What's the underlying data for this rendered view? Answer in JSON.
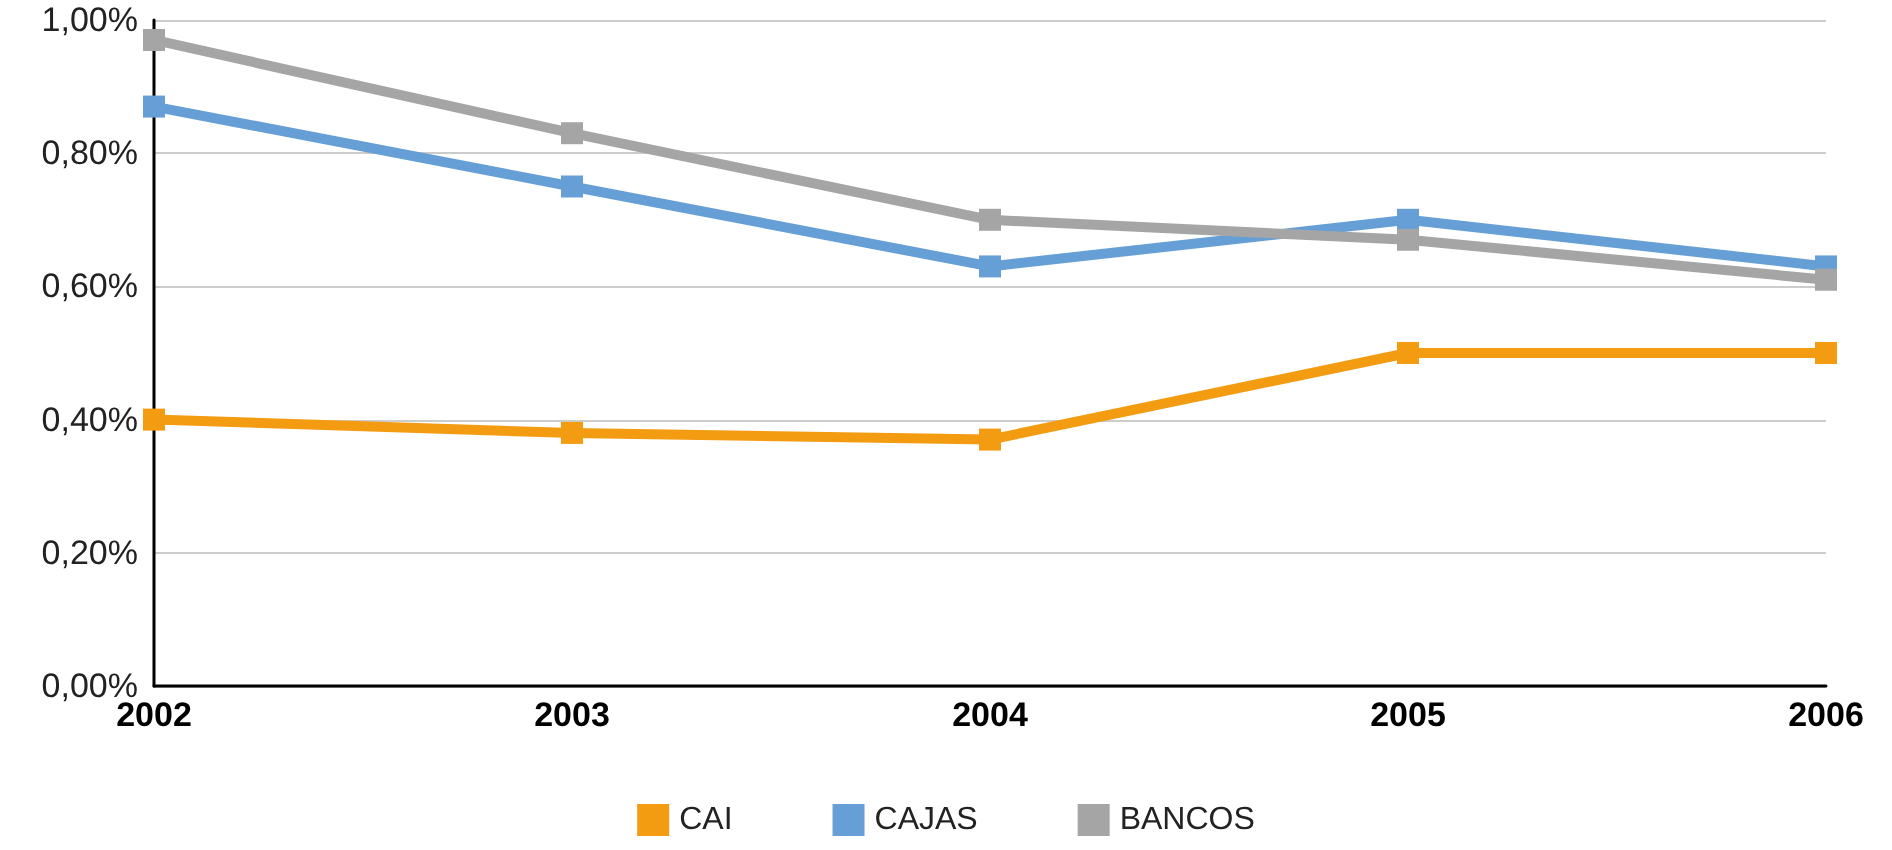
{
  "chart_data": {
    "type": "line",
    "categories": [
      "2002",
      "2003",
      "2004",
      "2005",
      "2006"
    ],
    "series": [
      {
        "name": "CAI",
        "color": "#f39c12",
        "values": [
          0.4,
          0.38,
          0.37,
          0.5,
          0.5
        ]
      },
      {
        "name": "CAJAS",
        "color": "#659fd6",
        "values": [
          0.87,
          0.75,
          0.63,
          0.7,
          0.63
        ]
      },
      {
        "name": "BANCOS",
        "color": "#a5a5a5",
        "values": [
          0.97,
          0.83,
          0.7,
          0.67,
          0.61
        ]
      }
    ],
    "ylim": [
      0,
      1
    ],
    "yticks": [
      {
        "value": 0,
        "label": "0,00%"
      },
      {
        "value": 0.2,
        "label": "0,20%"
      },
      {
        "value": 0.4,
        "label": "0,40%"
      },
      {
        "value": 0.6,
        "label": "0,60%"
      },
      {
        "value": 0.8,
        "label": "0,80%"
      },
      {
        "value": 1,
        "label": "1,00%"
      }
    ],
    "grid": "y",
    "legend": "bottom",
    "marker": "square",
    "line_style": "solid"
  }
}
